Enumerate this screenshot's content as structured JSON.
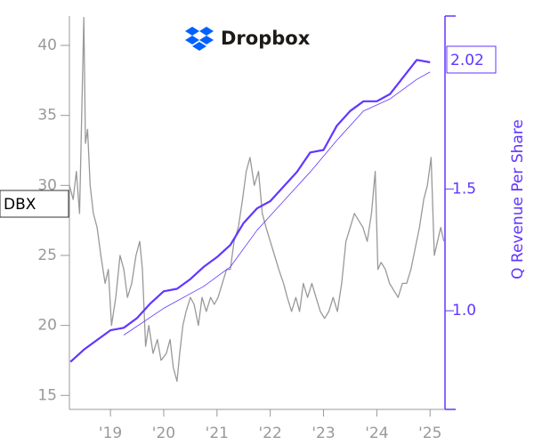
{
  "chart_data": {
    "type": "line",
    "title": "Dropbox",
    "y2label": "Q Revenue Per Share",
    "annotations": [
      "DBX",
      "2.02"
    ],
    "xlim": [
      2018.23,
      2025.28
    ],
    "xticks": [
      {
        "value": 2019,
        "label": "'19"
      },
      {
        "value": 2020,
        "label": "'20"
      },
      {
        "value": 2021,
        "label": "'21"
      },
      {
        "value": 2022,
        "label": "'22"
      },
      {
        "value": 2023,
        "label": "'23"
      },
      {
        "value": 2024,
        "label": "'24"
      },
      {
        "value": 2025,
        "label": "'25"
      }
    ],
    "ylim": [
      14,
      42.1
    ],
    "yticks": [
      15,
      20,
      25,
      30,
      35,
      40
    ],
    "y2lim": [
      0.595,
      2.21
    ],
    "y2ticks": [
      {
        "value": 1,
        "label": "1.0"
      },
      1.5
    ],
    "series": [
      {
        "color": "#999999",
        "axis": "y",
        "x": [
          2018.23,
          2018.3,
          2018.36,
          2018.42,
          2018.46,
          2018.5,
          2018.53,
          2018.57,
          2018.62,
          2018.68,
          2018.75,
          2018.82,
          2018.9,
          2018.96,
          2019.02,
          2019.1,
          2019.18,
          2019.25,
          2019.32,
          2019.4,
          2019.48,
          2019.55,
          2019.6,
          2019.66,
          2019.72,
          2019.8,
          2019.88,
          2019.95,
          2020.05,
          2020.12,
          2020.18,
          2020.25,
          2020.3,
          2020.36,
          2020.42,
          2020.5,
          2020.57,
          2020.65,
          2020.72,
          2020.8,
          2020.88,
          2020.95,
          2021.02,
          2021.1,
          2021.18,
          2021.25,
          2021.32,
          2021.4,
          2021.48,
          2021.55,
          2021.62,
          2021.7,
          2021.78,
          2021.85,
          2021.92,
          2022.0,
          2022.08,
          2022.16,
          2022.25,
          2022.32,
          2022.4,
          2022.48,
          2022.55,
          2022.62,
          2022.7,
          2022.78,
          2022.86,
          2022.94,
          2023.02,
          2023.1,
          2023.18,
          2023.26,
          2023.34,
          2023.42,
          2023.5,
          2023.58,
          2023.66,
          2023.74,
          2023.82,
          2023.9,
          2023.97,
          2024.02,
          2024.08,
          2024.16,
          2024.24,
          2024.32,
          2024.4,
          2024.48,
          2024.56,
          2024.64,
          2024.72,
          2024.8,
          2024.88,
          2024.95,
          2025.02,
          2025.08,
          2025.14,
          2025.2,
          2025.26
        ],
        "values": [
          30,
          29,
          31,
          28,
          35,
          42,
          33,
          34,
          30,
          28,
          27,
          25,
          23,
          24,
          20,
          22,
          25,
          24,
          22,
          23,
          25,
          26,
          24,
          18.5,
          20,
          18,
          19,
          17.5,
          18,
          19,
          17,
          16,
          18,
          20,
          21,
          22,
          21.5,
          20,
          22,
          21,
          22,
          21.5,
          22,
          23,
          24,
          24,
          26,
          27,
          29,
          31,
          32,
          30,
          31,
          28,
          27,
          26,
          25,
          24,
          23,
          22,
          21,
          22,
          21,
          23,
          22,
          23,
          22,
          21,
          20.5,
          21,
          22,
          21,
          23,
          26,
          27,
          28,
          27.5,
          27,
          26,
          28,
          31,
          24,
          24.5,
          24,
          23,
          22.5,
          22,
          23,
          23,
          24,
          25.5,
          27,
          29,
          30,
          32,
          25,
          26,
          27,
          26
        ]
      },
      {
        "color": "#6236ff",
        "axis": "y2",
        "x": [
          2018.25,
          2018.5,
          2018.75,
          2019.0,
          2019.25,
          2019.5,
          2019.75,
          2020.0,
          2020.25,
          2020.5,
          2020.75,
          2021.0,
          2021.25,
          2021.5,
          2021.75,
          2022.0,
          2022.25,
          2022.5,
          2022.75,
          2023.0,
          2023.25,
          2023.5,
          2023.75,
          2024.0,
          2024.25,
          2024.5,
          2024.75,
          2025.0
        ],
        "values": [
          0.79,
          0.84,
          0.88,
          0.92,
          0.93,
          0.97,
          1.03,
          1.08,
          1.09,
          1.13,
          1.18,
          1.22,
          1.27,
          1.36,
          1.42,
          1.45,
          1.51,
          1.57,
          1.65,
          1.66,
          1.76,
          1.82,
          1.86,
          1.86,
          1.89,
          1.96,
          2.03,
          2.02
        ]
      },
      {
        "color": "#6236ff",
        "axis": "y2",
        "x": [
          2019.25,
          2020.0,
          2020.75,
          2021.25,
          2021.75,
          2022.25,
          2022.75,
          2023.25,
          2023.75,
          2024.25,
          2024.75,
          2025.0
        ],
        "values": [
          0.9,
          1.01,
          1.1,
          1.18,
          1.33,
          1.45,
          1.57,
          1.7,
          1.82,
          1.87,
          1.95,
          1.98
        ]
      }
    ]
  }
}
